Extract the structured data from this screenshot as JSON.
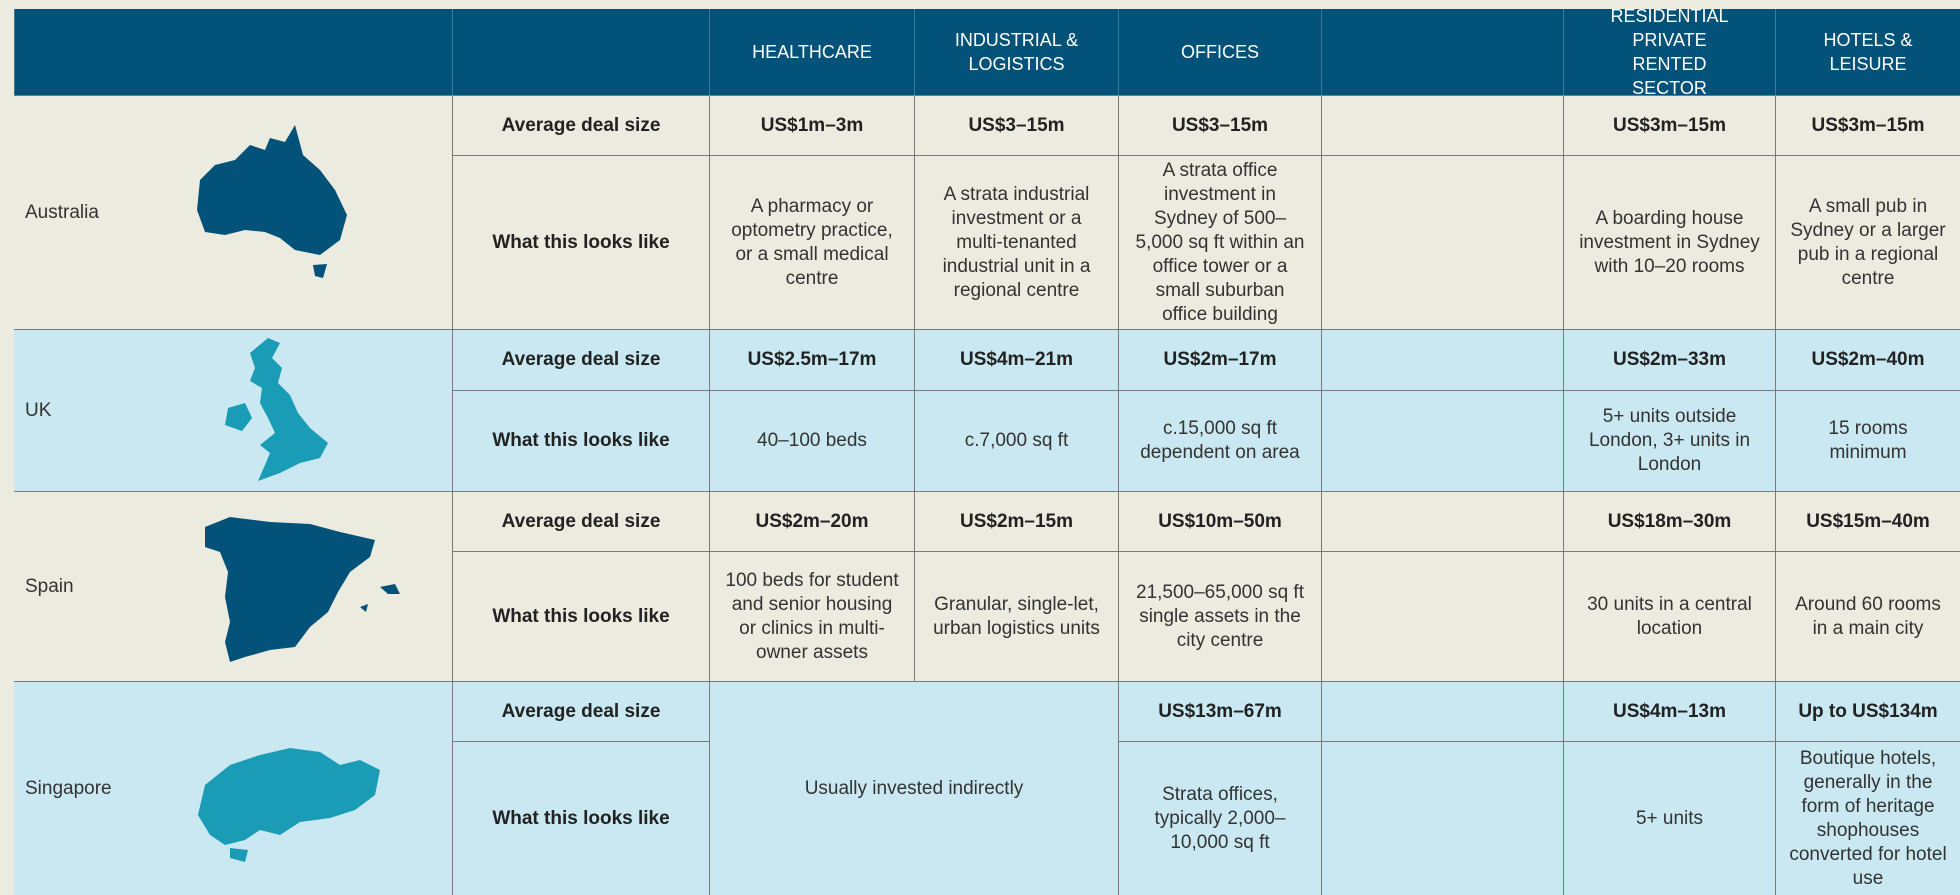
{
  "table": {
    "headers": [
      "HEALTHCARE",
      "INDUSTRIAL & LOGISTICS",
      "OFFICES",
      "RESIDENTIAL PRIVATE RENTED SECTOR",
      "HOTELS & LEISURE"
    ],
    "rows": [
      {
        "country": "Australia",
        "deal_label": "Average deal size",
        "looks_label": "What this looks like",
        "deal": [
          "US$1m–3m",
          "US$3–15m",
          "US$3–15m",
          "US$3m–15m",
          "US$3m–15m"
        ],
        "looks": [
          "A pharmacy or optometry practice, or a small medical centre",
          "A strata industrial investment or a multi-tenanted industrial unit in a regional centre",
          "A strata office investment in Sydney of 500–5,000 sq ft within an office tower or a small suburban office building",
          "A boarding house investment in Sydney with 10–20 rooms",
          "A small pub in Sydney or a larger pub in a regional centre"
        ]
      },
      {
        "country": "UK",
        "deal_label": "Average deal size",
        "looks_label": "What this looks like",
        "deal": [
          "US$2.5m–17m",
          "US$4m–21m",
          "US$2m–17m",
          "US$2m–33m",
          "US$2m–40m"
        ],
        "looks": [
          "40–100 beds",
          "c.7,000 sq ft",
          "c.15,000 sq ft dependent on area",
          "5+ units outside London, 3+ units in London",
          "15 rooms minimum"
        ]
      },
      {
        "country": "Spain",
        "deal_label": "Average deal size",
        "looks_label": "What this looks like",
        "deal": [
          "US$2m–20m",
          "US$2m–15m",
          "US$10m–50m",
          "US$18m–30m",
          "US$15m–40m"
        ],
        "looks": [
          "100 beds for student and senior housing or clinics in multi-owner assets",
          "Granular, single-let, urban logistics units",
          "21,500–65,000 sq ft single assets in the city centre",
          "30 units in a central location",
          "Around 60 rooms in a main city"
        ]
      },
      {
        "country": "Singapore",
        "deal_label": "Average deal size",
        "looks_label": "What this looks like",
        "indirect": "Usually invested indirectly",
        "deal": [
          "US$13m–67m",
          "US$4m–13m",
          "Up to US$134m"
        ],
        "looks": [
          "Strata offices, typically 2,000–10,000 sq ft",
          "5+ units",
          "Boutique hotels, generally in the form of heritage shophouses converted for hotel use"
        ]
      }
    ]
  }
}
